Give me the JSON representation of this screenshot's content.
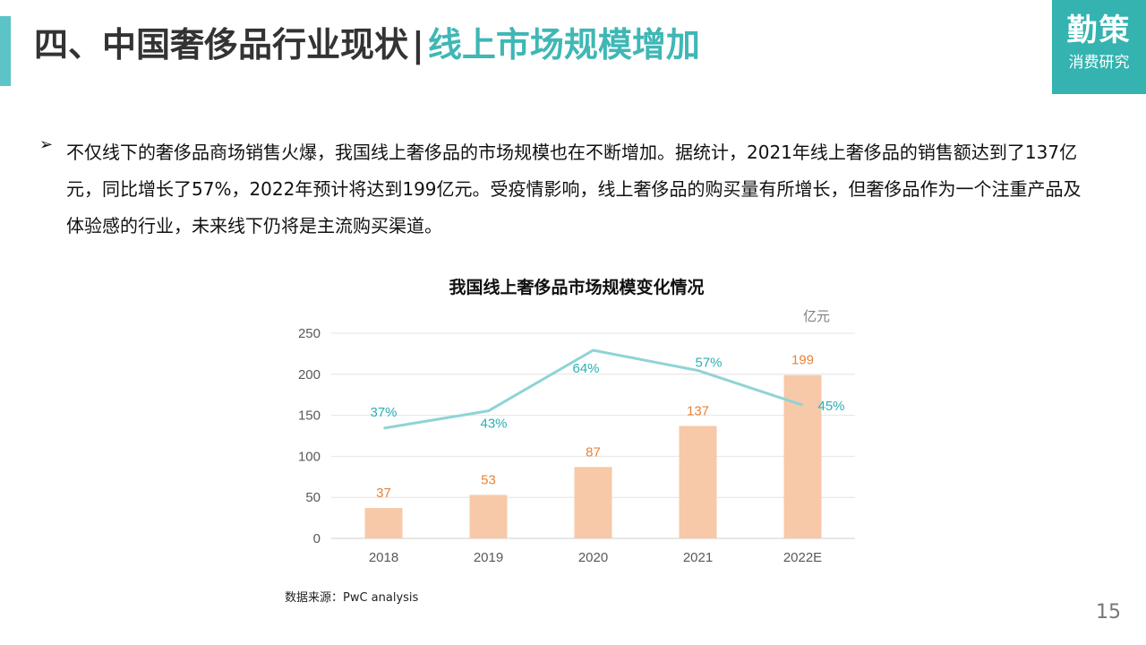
{
  "header": {
    "title_main": "四、中国奢侈品行业现状",
    "title_sep": "|",
    "title_sub": "线上市场规模增加"
  },
  "brand": {
    "line1": "勤策",
    "line2": "消费研究"
  },
  "bullet": {
    "arrow": "➢",
    "text": "不仅线下的奢侈品商场销售火爆，我国线上奢侈品的市场规模也在不断增加。据统计，2021年线上奢侈品的销售额达到了137亿元，同比增长了57%，2022年预计将达到199亿元。受疫情影响，线上奢侈品的购买量有所增长，但奢侈品作为一个注重产品及体验感的行业，未来线下仍将是主流购买渠道。"
  },
  "chart_data": {
    "type": "bar",
    "title": "我国线上奢侈品市场规模变化情况",
    "unit": "亿元",
    "categories": [
      "2018",
      "2019",
      "2020",
      "2021",
      "2022E"
    ],
    "series": [
      {
        "type": "bar",
        "values": [
          37,
          53,
          87,
          137,
          199
        ],
        "labels": [
          "37",
          "53",
          "87",
          "137",
          "199"
        ],
        "color": "#f7c9a8",
        "label_color": "#e8833a"
      },
      {
        "type": "line",
        "values": [
          37,
          43,
          64,
          57,
          45
        ],
        "labels": [
          "37%",
          "43%",
          "64%",
          "57%",
          "45%"
        ],
        "color": "#8fd3d6",
        "label_color": "#2ab0b2"
      }
    ],
    "yticks": [
      "0",
      "50",
      "100",
      "150",
      "200",
      "250"
    ],
    "ylim": [
      0,
      250
    ],
    "grid": true,
    "legend": "none"
  },
  "footer": {
    "source": "数据来源：PwC analysis",
    "page": "15"
  }
}
